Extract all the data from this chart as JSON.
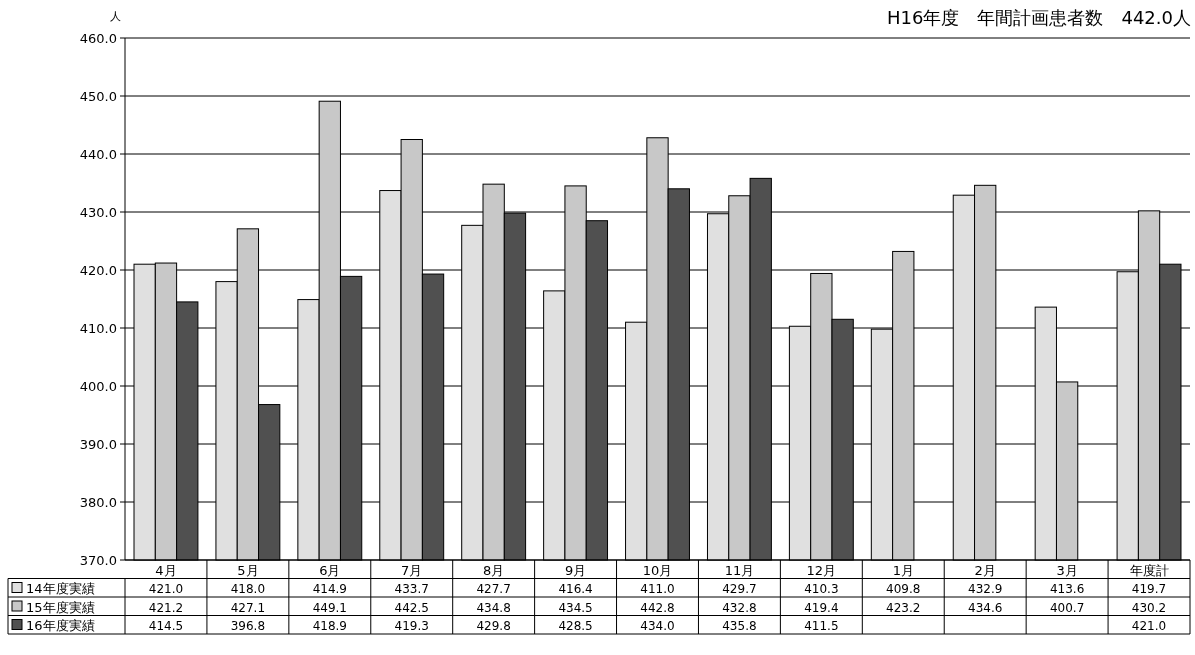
{
  "chart_data": {
    "type": "bar",
    "title": "H16年度　年間計画患者数　442.0人",
    "ylabel": "人",
    "categories": [
      "4月",
      "5月",
      "6月",
      "7月",
      "8月",
      "9月",
      "10月",
      "11月",
      "12月",
      "1月",
      "2月",
      "3月",
      "年度計"
    ],
    "series": [
      {
        "name": "14年度実績",
        "color": "#e0e0e0",
        "values": [
          421.0,
          418.0,
          414.9,
          433.7,
          427.7,
          416.4,
          411.0,
          429.7,
          410.3,
          409.8,
          432.9,
          413.6,
          419.7
        ],
        "value_labels": [
          "421.0",
          "418.0",
          "414.9",
          "433.7",
          "427.7",
          "416.4",
          "411.0",
          "429.7",
          "410.3",
          "409.8",
          "432.9",
          "413.6",
          "419.7"
        ]
      },
      {
        "name": "15年度実績",
        "color": "#c8c8c8",
        "values": [
          421.2,
          427.1,
          449.1,
          442.5,
          434.8,
          434.5,
          442.8,
          432.8,
          419.4,
          423.2,
          434.6,
          400.7,
          430.2
        ],
        "value_labels": [
          "421.2",
          "427.1",
          "449.1",
          "442.5",
          "434.8",
          "434.5",
          "442.8",
          "432.8",
          "419.4",
          "423.2",
          "434.6",
          "400.7",
          "430.2"
        ]
      },
      {
        "name": "16年度実績",
        "color": "#505050",
        "values": [
          414.5,
          396.8,
          418.9,
          419.3,
          429.8,
          428.5,
          434.0,
          435.8,
          411.5,
          null,
          null,
          null,
          421.0
        ],
        "value_labels": [
          "414.5",
          "396.8",
          "418.9",
          "419.3",
          "429.8",
          "428.5",
          "434.0",
          "435.8",
          "411.5",
          null,
          null,
          null,
          "421.0"
        ]
      }
    ],
    "ylim": [
      370,
      460
    ],
    "yticks": [
      {
        "value": 370,
        "label": "370.0"
      },
      {
        "value": 380,
        "label": "380.0"
      },
      {
        "value": 390,
        "label": "390.0"
      },
      {
        "value": 400,
        "label": "400.0"
      },
      {
        "value": 410,
        "label": "410.0"
      },
      {
        "value": 420,
        "label": "420.0"
      },
      {
        "value": 430,
        "label": "430.0"
      },
      {
        "value": 440,
        "label": "440.0"
      },
      {
        "value": 450,
        "label": "450.0"
      },
      {
        "value": 460,
        "label": "460.0"
      }
    ],
    "grid": "y",
    "legend": "bottom"
  }
}
